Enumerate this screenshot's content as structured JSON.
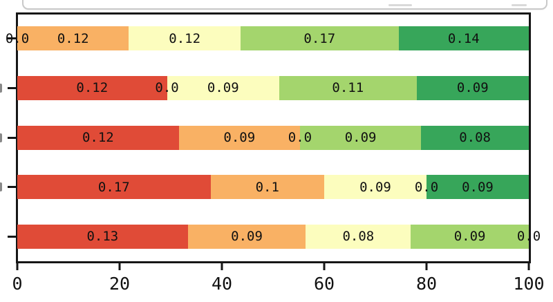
{
  "chart_data": {
    "type": "bar",
    "orientation": "horizontal",
    "stacked": true,
    "normalized_row_total": 100,
    "grid": false,
    "legend": "cropped-out-of-frame",
    "palette": {
      "red": "#e04b37",
      "orange": "#f9b164",
      "yellow": "#fcfdbe",
      "lightgreen": "#a4d56d",
      "green": "#37a65a"
    },
    "x_axis": {
      "range": [
        0,
        100
      ],
      "tick_labels": [
        "0",
        "20",
        "40",
        "60",
        "80",
        "100"
      ]
    },
    "y_axis": {
      "categories": [
        "",
        "",
        "",
        "",
        ""
      ]
    },
    "rows": [
      {
        "segments": [
          {
            "label": "0.0",
            "value": 0.0,
            "color": "red"
          },
          {
            "label": "0.12",
            "value": 0.12,
            "color": "orange"
          },
          {
            "label": "0.12",
            "value": 0.12,
            "color": "yellow"
          },
          {
            "label": "0.17",
            "value": 0.17,
            "color": "lightgreen"
          },
          {
            "label": "0.14",
            "value": 0.14,
            "color": "green"
          }
        ]
      },
      {
        "segments": [
          {
            "label": "0.12",
            "value": 0.12,
            "color": "red"
          },
          {
            "label": "0.0",
            "value": 0.0,
            "color": "orange"
          },
          {
            "label": "0.09",
            "value": 0.09,
            "color": "yellow"
          },
          {
            "label": "0.11",
            "value": 0.11,
            "color": "lightgreen"
          },
          {
            "label": "0.09",
            "value": 0.09,
            "color": "green"
          }
        ]
      },
      {
        "segments": [
          {
            "label": "0.12",
            "value": 0.12,
            "color": "red"
          },
          {
            "label": "0.09",
            "value": 0.09,
            "color": "orange"
          },
          {
            "label": "0.0",
            "value": 0.0,
            "color": "yellow"
          },
          {
            "label": "0.09",
            "value": 0.09,
            "color": "lightgreen"
          },
          {
            "label": "0.08",
            "value": 0.08,
            "color": "green"
          }
        ]
      },
      {
        "segments": [
          {
            "label": "0.17",
            "value": 0.17,
            "color": "red"
          },
          {
            "label": "0.1",
            "value": 0.1,
            "color": "orange"
          },
          {
            "label": "0.09",
            "value": 0.09,
            "color": "yellow"
          },
          {
            "label": "0.0",
            "value": 0.0,
            "color": "lightgreen"
          },
          {
            "label": "0.09",
            "value": 0.09,
            "color": "green"
          }
        ]
      },
      {
        "segments": [
          {
            "label": "0.13",
            "value": 0.13,
            "color": "red"
          },
          {
            "label": "0.09",
            "value": 0.09,
            "color": "orange"
          },
          {
            "label": "0.08",
            "value": 0.08,
            "color": "yellow"
          },
          {
            "label": "0.09",
            "value": 0.09,
            "color": "lightgreen"
          },
          {
            "label": "0.0",
            "value": 0.0,
            "color": "green"
          }
        ]
      }
    ]
  }
}
